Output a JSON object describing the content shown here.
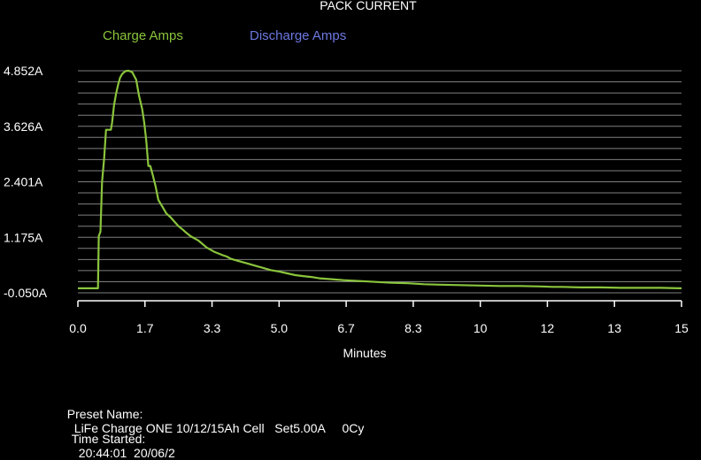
{
  "chart_data": {
    "type": "line",
    "title": "PACK CURRENT",
    "xlabel": "Minutes",
    "ylabel": "",
    "x_tick_labels": [
      "0.0",
      "1.7",
      "3.3",
      "5.0",
      "6.7",
      "8.3",
      "10",
      "12",
      "13",
      "15"
    ],
    "y_tick_labels": [
      "4.852A",
      "3.626A",
      "2.401A",
      "1.175A",
      "-0.050A"
    ],
    "xlim": [
      0,
      15
    ],
    "ylim": [
      -0.05,
      4.852
    ],
    "grid": true,
    "legend_position": "top",
    "series": [
      {
        "name": "Charge Amps",
        "color": "#8ac43c",
        "x": [
          0.0,
          0.5,
          0.52,
          0.56,
          0.6,
          0.65,
          0.7,
          0.76,
          0.82,
          0.85,
          0.9,
          0.95,
          1.0,
          1.05,
          1.1,
          1.15,
          1.2,
          1.27,
          1.35,
          1.45,
          1.52,
          1.6,
          1.65,
          1.7,
          1.75,
          1.8,
          1.86,
          1.93,
          2.0,
          2.1,
          2.2,
          2.3,
          2.4,
          2.5,
          2.6,
          2.7,
          2.8,
          2.9,
          3.0,
          3.2,
          3.4,
          3.6,
          3.7,
          3.8,
          4.0,
          4.2,
          4.4,
          4.6,
          4.8,
          5.0,
          5.2,
          5.4,
          5.6,
          5.8,
          6.0,
          6.3,
          6.6,
          7.0,
          7.4,
          7.8,
          8.2,
          8.6,
          9.0,
          9.5,
          10.0,
          10.5,
          11.0,
          11.5,
          11.8,
          12.0,
          12.5,
          13.0,
          13.5,
          14.0,
          14.5,
          15.0
        ],
        "y": [
          0.05,
          0.05,
          1.2,
          1.3,
          2.4,
          2.9,
          3.55,
          3.55,
          3.55,
          3.7,
          4.1,
          4.35,
          4.55,
          4.7,
          4.78,
          4.82,
          4.85,
          4.852,
          4.82,
          4.65,
          4.3,
          4.0,
          3.7,
          3.3,
          2.75,
          2.75,
          2.55,
          2.3,
          2.0,
          1.85,
          1.7,
          1.62,
          1.52,
          1.42,
          1.35,
          1.27,
          1.2,
          1.15,
          1.1,
          0.95,
          0.85,
          0.78,
          0.75,
          0.7,
          0.65,
          0.6,
          0.55,
          0.5,
          0.45,
          0.42,
          0.38,
          0.34,
          0.32,
          0.3,
          0.27,
          0.25,
          0.23,
          0.21,
          0.19,
          0.17,
          0.16,
          0.14,
          0.13,
          0.12,
          0.11,
          0.1,
          0.1,
          0.09,
          0.08,
          0.08,
          0.07,
          0.07,
          0.06,
          0.06,
          0.06,
          0.05
        ]
      },
      {
        "name": "Discharge Amps",
        "color": "#6c78e0",
        "x": [],
        "y": []
      }
    ]
  },
  "info": {
    "preset_label": "Preset Name:",
    "preset_value": "LiFe Charge ONE 10/12/15Ah Cell   Set5.00A     0Cy",
    "time_label": "Time Started:",
    "time_value": "20:44:01  20/06/2"
  },
  "colors": {
    "background": "#000000",
    "grid": "#7f7f7f",
    "text": "#ffffff",
    "charge": "#8ac43c",
    "discharge": "#6c78e0"
  }
}
